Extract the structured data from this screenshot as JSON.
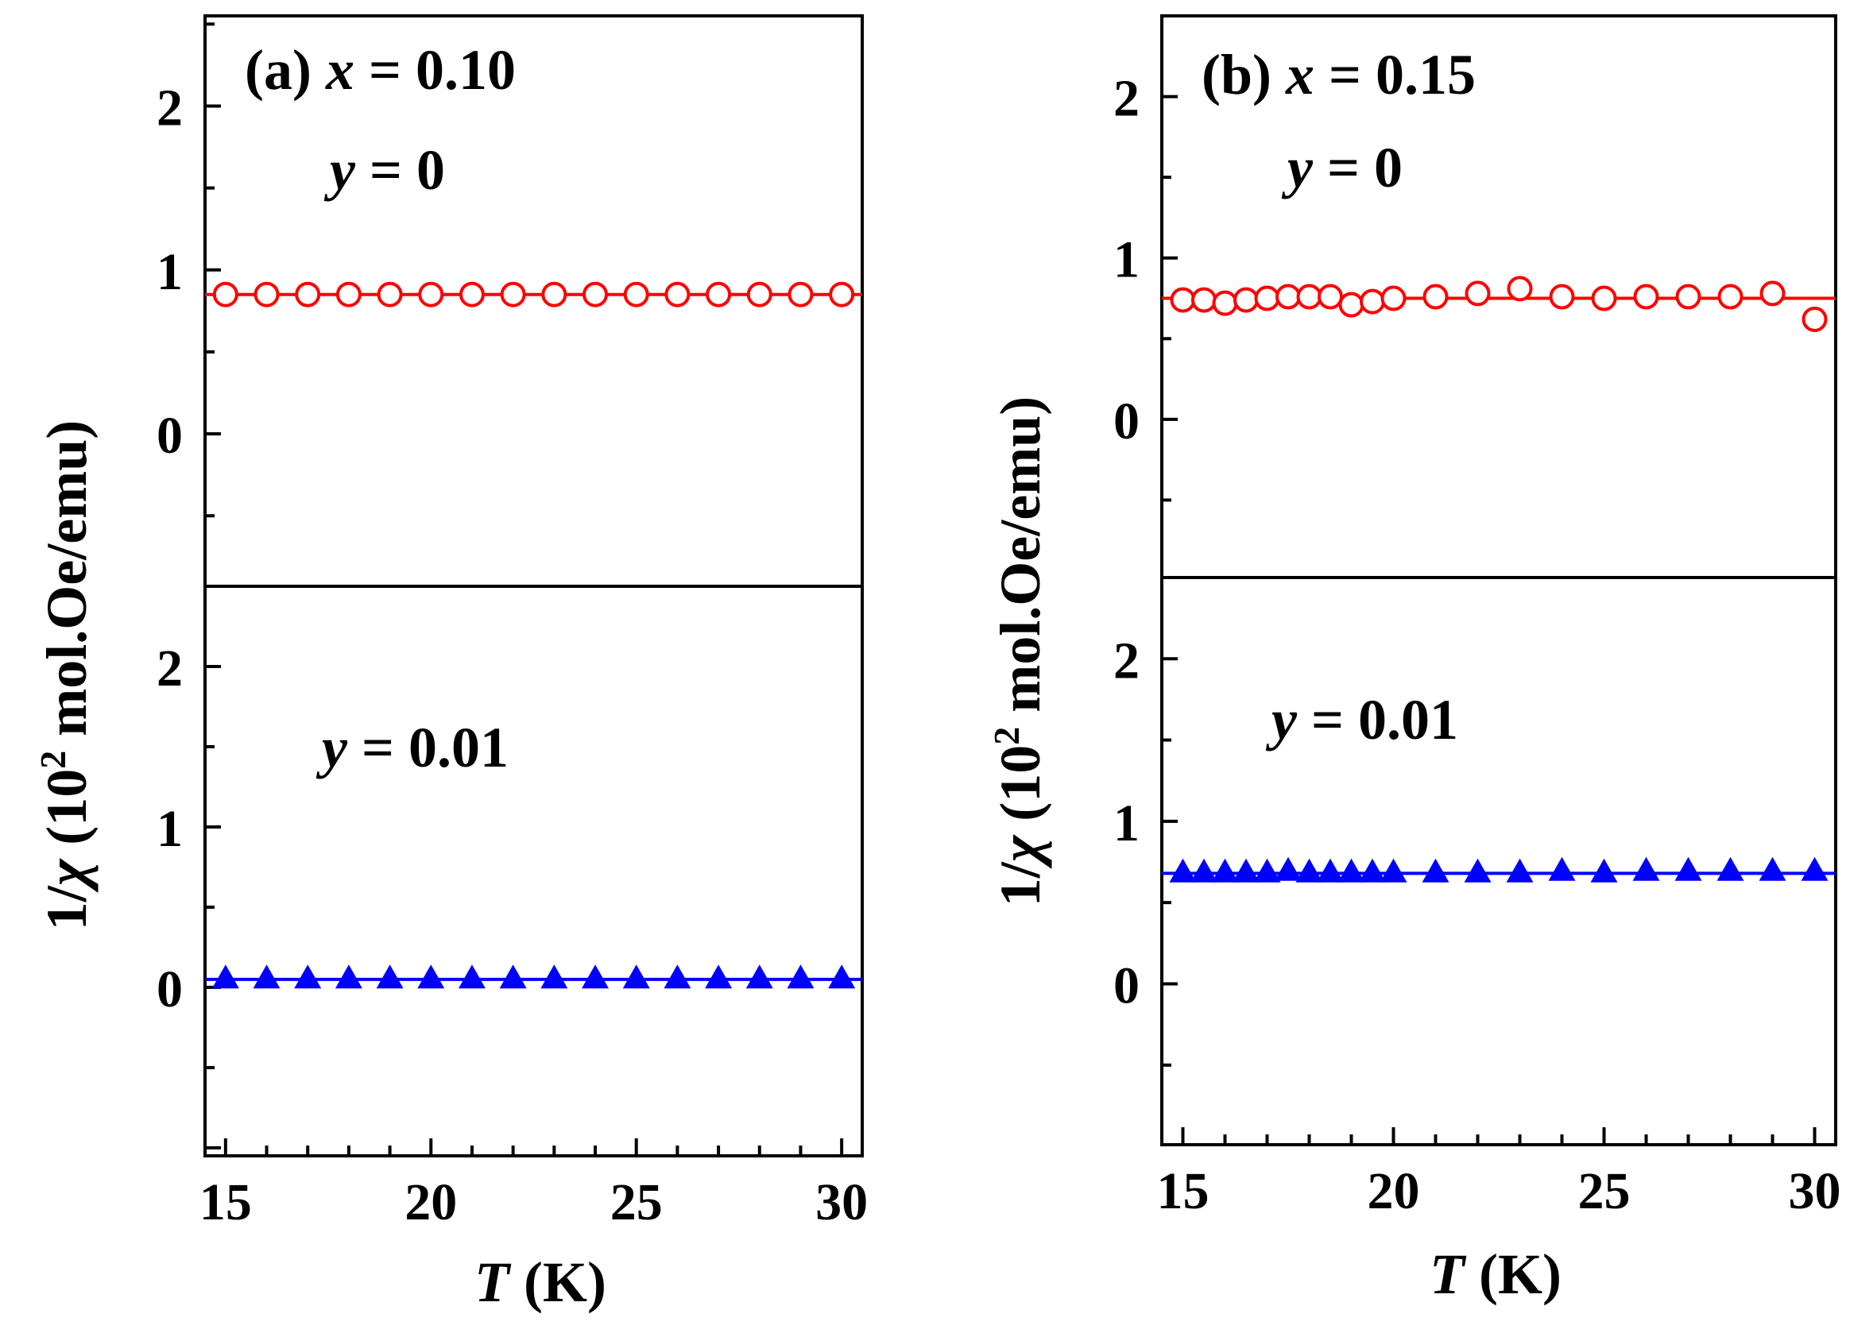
{
  "figure": {
    "x_title": {
      "var": "T",
      "unit": "(K)"
    },
    "y_title": {
      "prefix": "1/",
      "var": "χ",
      "paren_open": "(10",
      "exp": "2",
      "rest": " mol.Oe/emu)"
    }
  },
  "chart_data": [
    {
      "type": "scatter",
      "panel": "a",
      "label": {
        "tag": "(a)",
        "var": "x",
        "eq": "= 0.10"
      },
      "x_ticks": [
        15,
        20,
        25,
        30
      ],
      "xlim": [
        14.5,
        30.5
      ],
      "subplots": [
        {
          "annotation": {
            "var": "y",
            "eq": "= 0"
          },
          "ylim": [
            -0.93,
            2.55
          ],
          "y_ticks": [
            0,
            1,
            2
          ],
          "series": [
            {
              "name": "y = 0",
              "marker": "open-circle",
              "color": "#ff0000",
              "x": [
                15,
                16,
                17,
                18,
                19,
                20,
                21,
                22,
                23,
                24,
                25,
                26,
                27,
                28,
                29,
                30
              ],
              "y": [
                0.85,
                0.85,
                0.85,
                0.85,
                0.85,
                0.85,
                0.85,
                0.85,
                0.85,
                0.85,
                0.85,
                0.85,
                0.85,
                0.85,
                0.85,
                0.85
              ],
              "fit": 0.85
            }
          ]
        },
        {
          "annotation": {
            "var": "y",
            "eq": "= 0.01"
          },
          "ylim": [
            -1.05,
            2.5
          ],
          "y_ticks": [
            0,
            1,
            2
          ],
          "series": [
            {
              "name": "y = 0.01",
              "marker": "filled-triangle",
              "color": "#0000ff",
              "x": [
                15,
                16,
                17,
                18,
                19,
                20,
                21,
                22,
                23,
                24,
                25,
                26,
                27,
                28,
                29,
                30
              ],
              "y": [
                0.05,
                0.05,
                0.05,
                0.05,
                0.05,
                0.05,
                0.05,
                0.05,
                0.05,
                0.05,
                0.05,
                0.05,
                0.05,
                0.05,
                0.05,
                0.05
              ],
              "fit": 0.05
            }
          ]
        }
      ]
    },
    {
      "type": "scatter",
      "panel": "b",
      "label": {
        "tag": "(b)",
        "var": "x",
        "eq": "= 0.15"
      },
      "x_ticks": [
        15,
        20,
        25,
        30
      ],
      "xlim": [
        14.5,
        30.5
      ],
      "subplots": [
        {
          "annotation": {
            "var": "y",
            "eq": "= 0"
          },
          "ylim": [
            -0.98,
            2.5
          ],
          "y_ticks": [
            0,
            1,
            2
          ],
          "series": [
            {
              "name": "y = 0",
              "marker": "open-circle",
              "color": "#ff0000",
              "x": [
                15,
                15.5,
                16,
                16.5,
                17,
                17.5,
                18,
                18.5,
                19,
                19.5,
                20,
                21,
                22,
                23,
                24,
                25,
                26,
                27,
                28,
                29,
                30
              ],
              "y": [
                0.74,
                0.74,
                0.72,
                0.74,
                0.75,
                0.76,
                0.76,
                0.76,
                0.71,
                0.73,
                0.75,
                0.76,
                0.78,
                0.81,
                0.76,
                0.75,
                0.76,
                0.76,
                0.76,
                0.78,
                0.62
              ],
              "fit": 0.75
            }
          ]
        },
        {
          "annotation": {
            "var": "y",
            "eq": "= 0.01"
          },
          "ylim": [
            -0.99,
            2.5
          ],
          "y_ticks": [
            0,
            1,
            2
          ],
          "series": [
            {
              "name": "y = 0.01",
              "marker": "filled-triangle",
              "color": "#0000ff",
              "x": [
                15,
                15.5,
                16,
                16.5,
                17,
                17.5,
                18,
                18.5,
                19,
                19.5,
                20,
                21,
                22,
                23,
                24,
                25,
                26,
                27,
                28,
                29,
                30
              ],
              "y": [
                0.68,
                0.68,
                0.68,
                0.68,
                0.68,
                0.69,
                0.68,
                0.68,
                0.68,
                0.68,
                0.68,
                0.68,
                0.68,
                0.68,
                0.69,
                0.68,
                0.69,
                0.69,
                0.69,
                0.69,
                0.69
              ],
              "fit": 0.68
            }
          ]
        }
      ]
    }
  ]
}
